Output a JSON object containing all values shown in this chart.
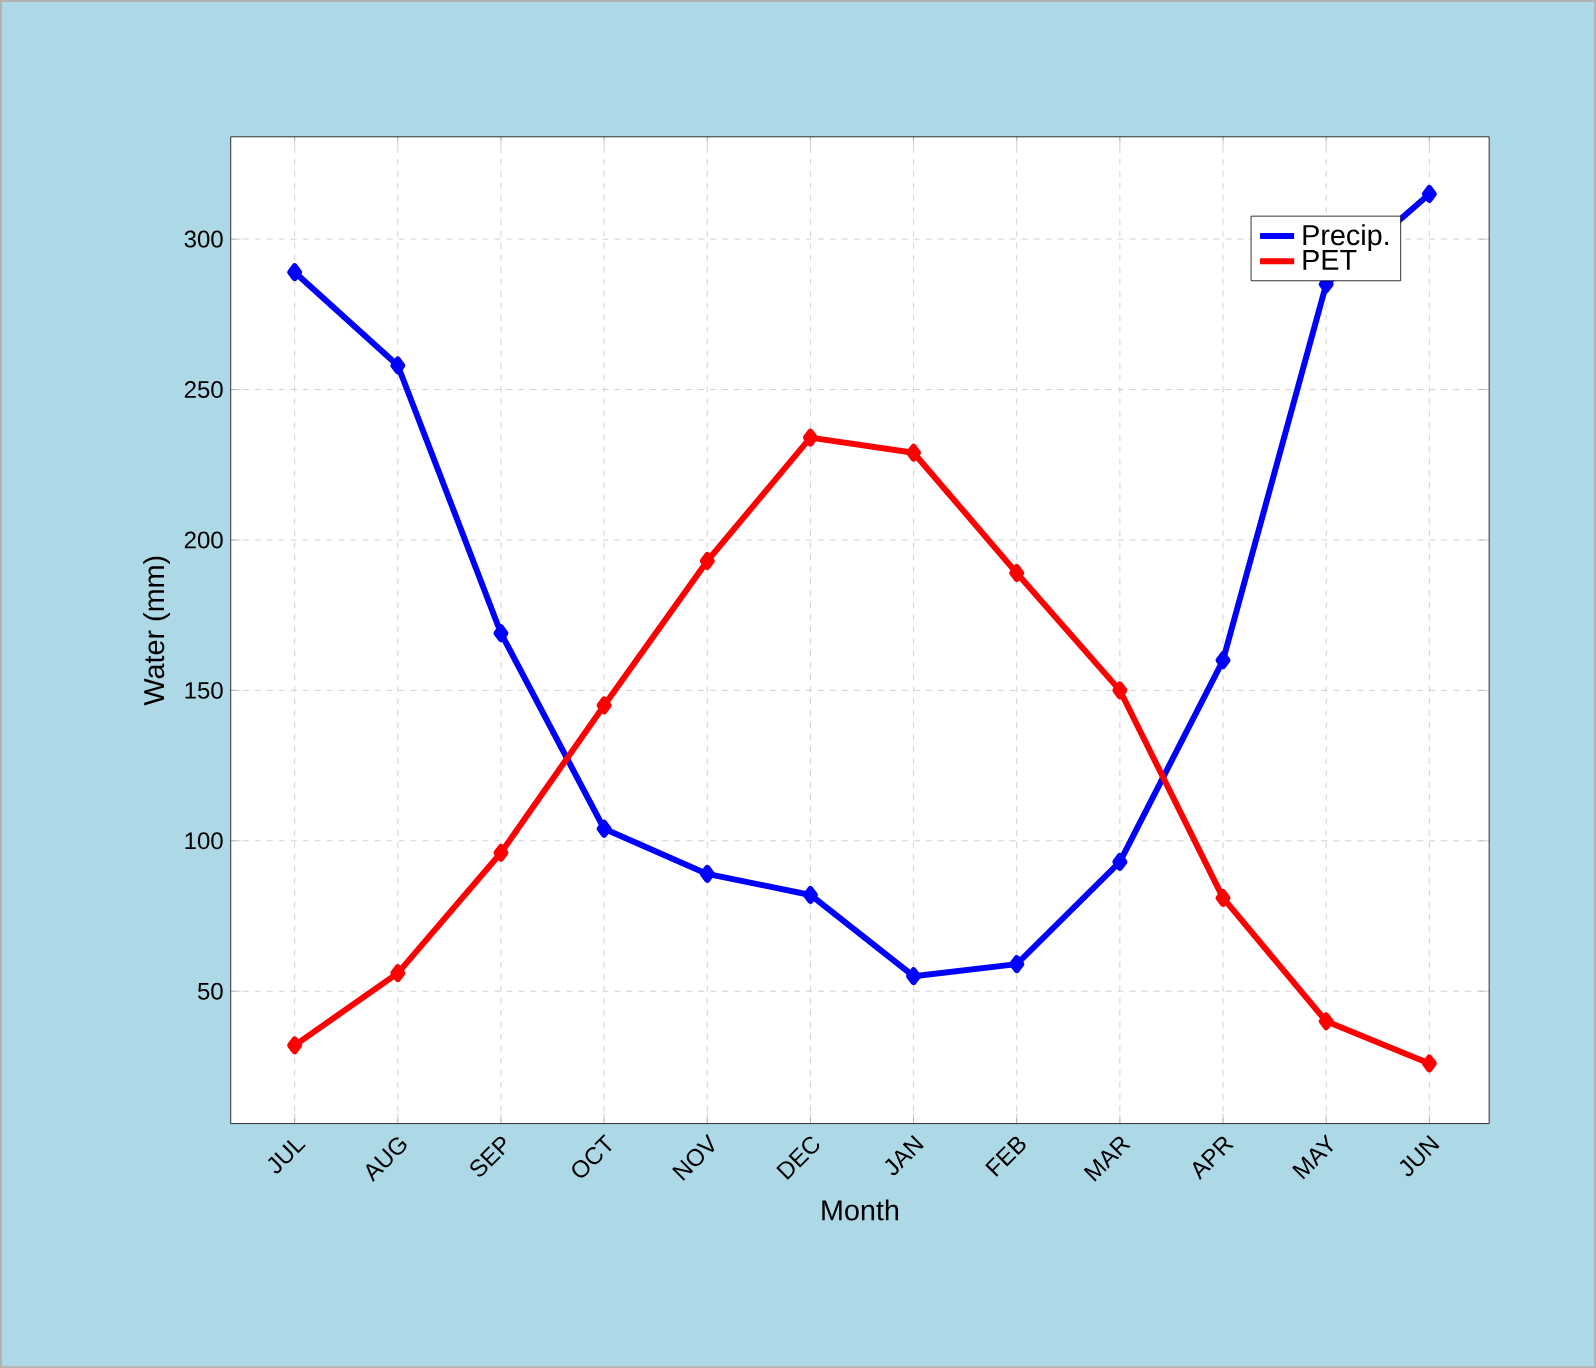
{
  "chart_data": {
    "type": "line",
    "xlabel": "Month",
    "ylabel": "Water (mm)",
    "categories": [
      "JUL",
      "AUG",
      "SEP",
      "OCT",
      "NOV",
      "DEC",
      "JAN",
      "FEB",
      "MAR",
      "APR",
      "MAY",
      "JUN"
    ],
    "series": [
      {
        "name": "Precip.",
        "color": "#0000ff",
        "values": [
          289,
          258,
          169,
          104,
          89,
          82,
          55,
          59,
          93,
          160,
          285,
          315
        ]
      },
      {
        "name": "PET",
        "color": "#ff0000",
        "values": [
          32,
          56,
          96,
          145,
          193,
          234,
          229,
          189,
          150,
          81,
          40,
          26
        ]
      }
    ],
    "ylim": [
      6,
      334
    ],
    "yticks": [
      50,
      100,
      150,
      200,
      250,
      300
    ],
    "grid": true,
    "legend": "top right",
    "marker": "diamond",
    "line_style": "solid"
  }
}
